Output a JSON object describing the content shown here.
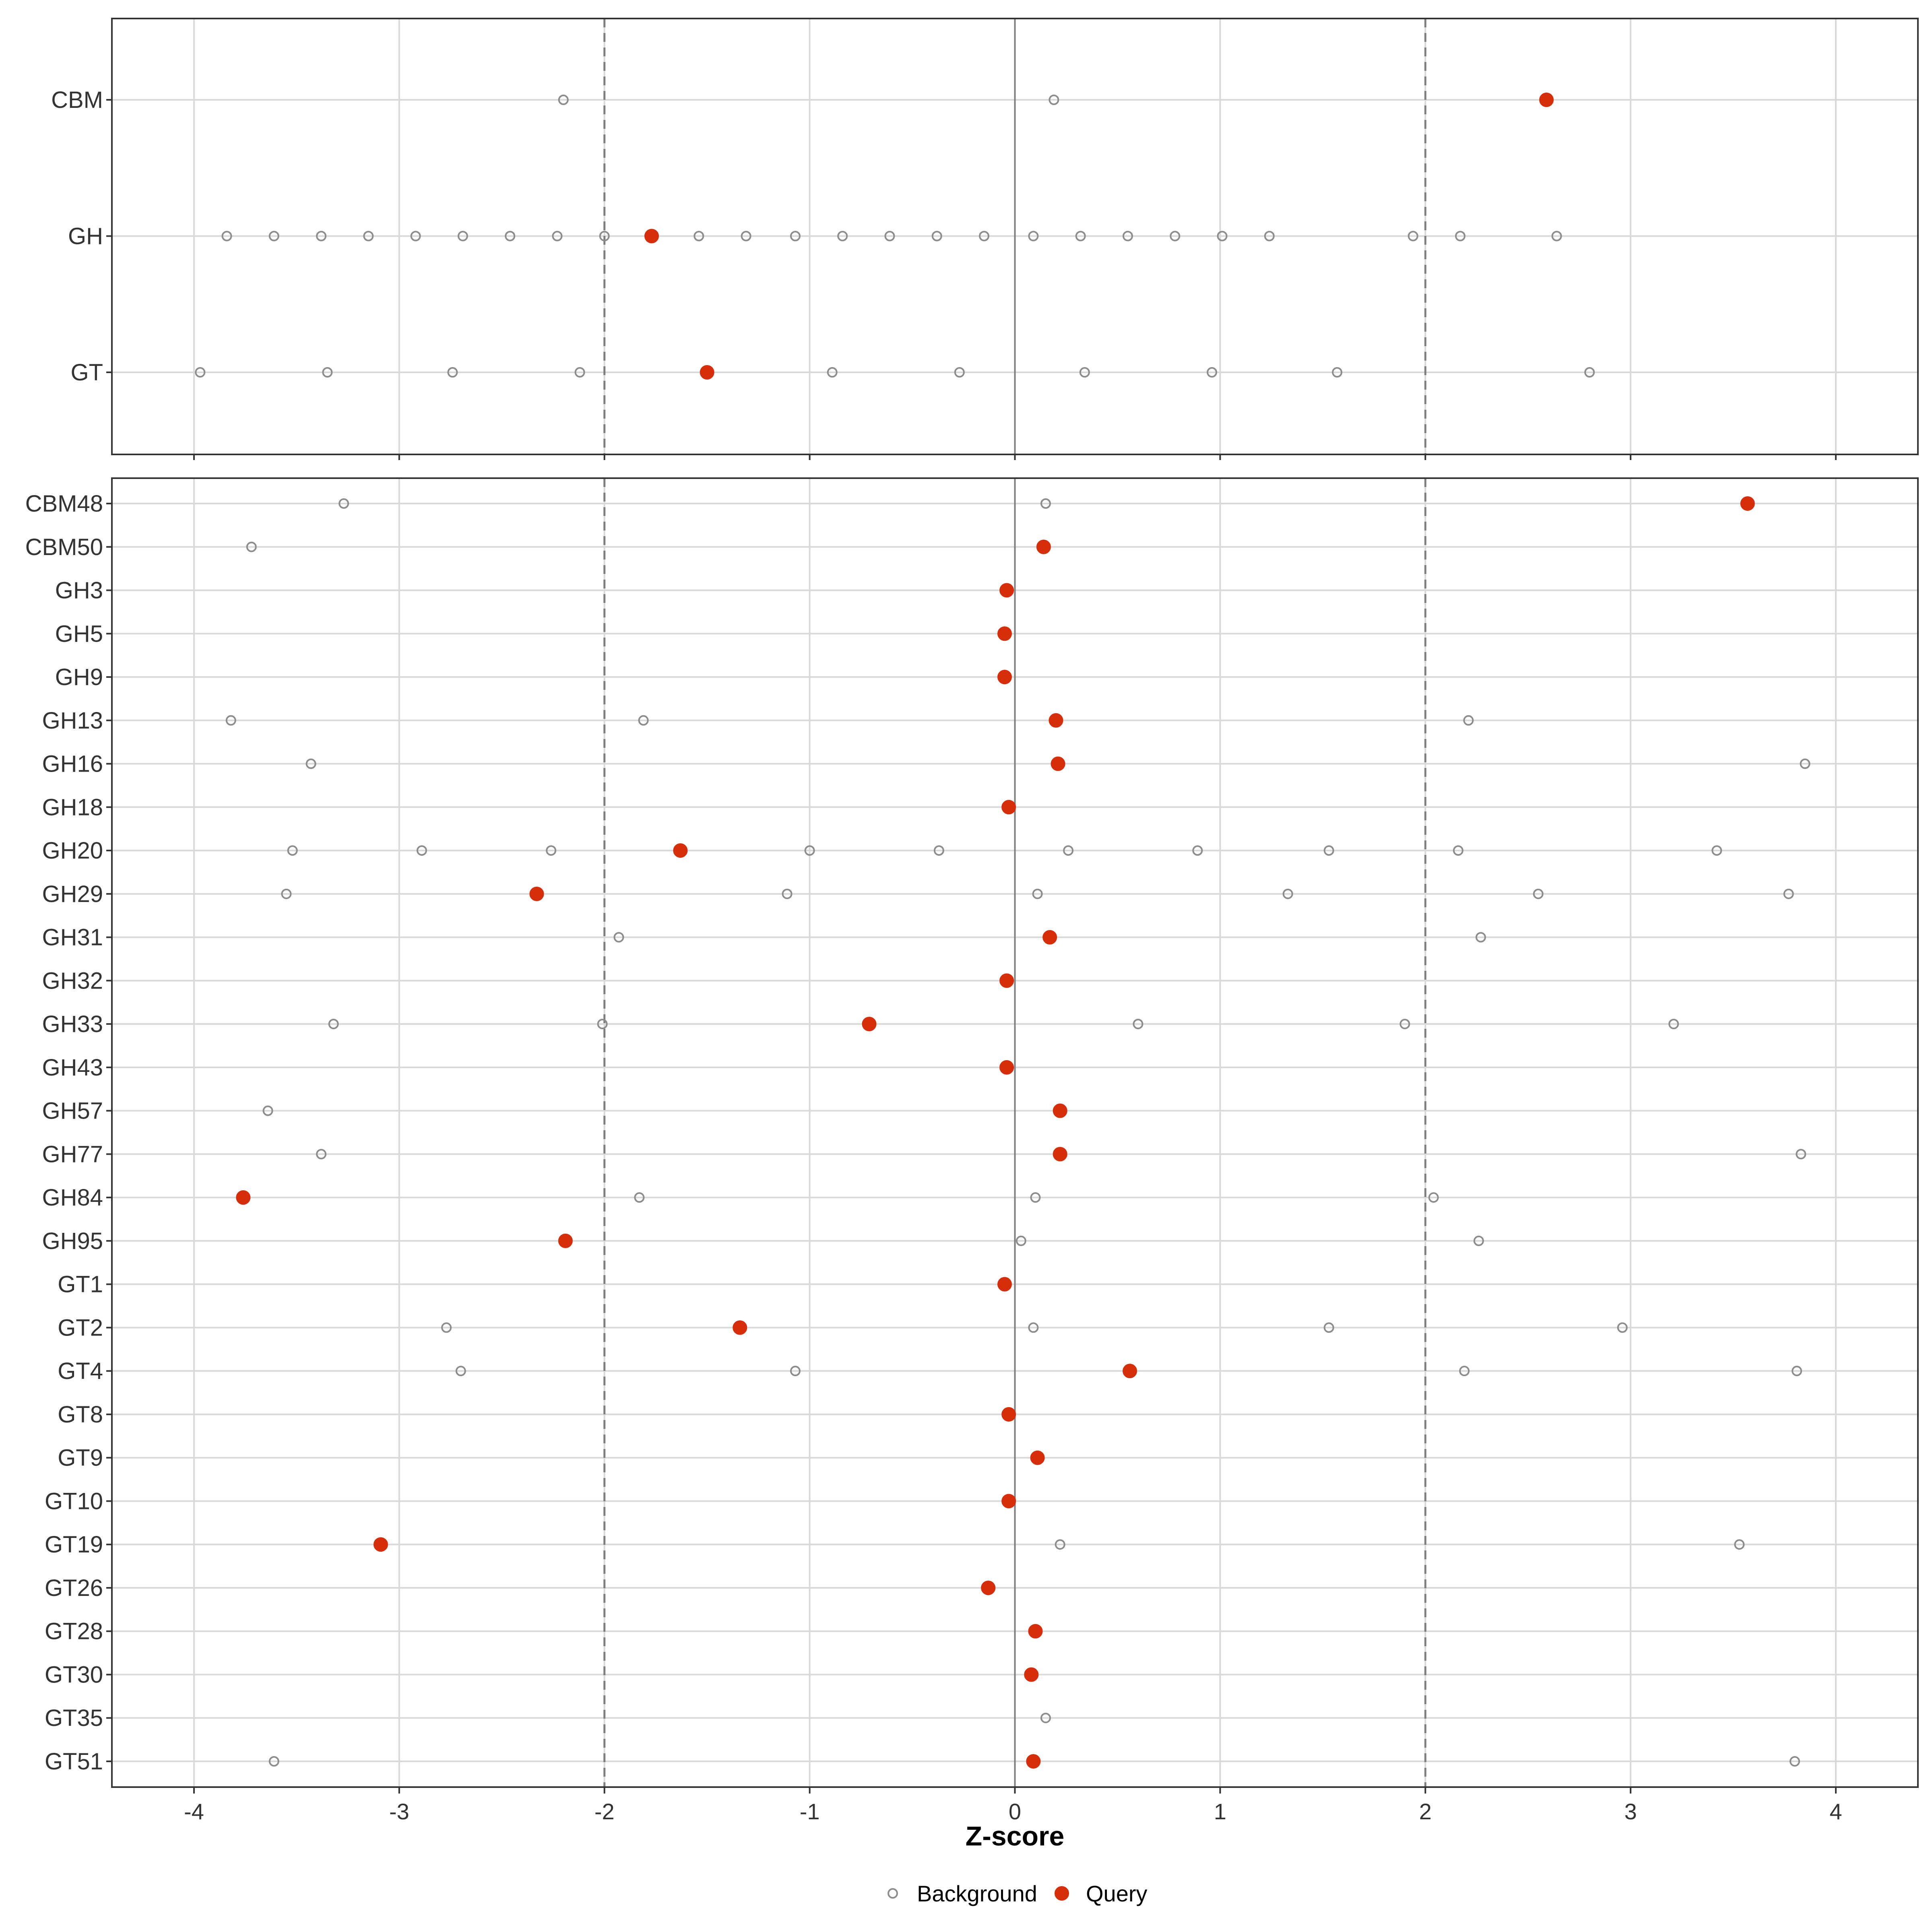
{
  "chart_data": {
    "type": "scatter",
    "xlabel": "Z-score",
    "xlim": [
      -4.4,
      4.4
    ],
    "x_ticks": [
      -4,
      -3,
      -2,
      -1,
      0,
      1,
      2,
      3,
      4
    ],
    "x_tick_labels": [
      "-4",
      "-3",
      "-2",
      "-1",
      "0",
      "1",
      "2",
      "3",
      "4"
    ],
    "reference_lines": {
      "solid": 0,
      "dashed": [
        -2,
        2
      ]
    },
    "grid": true,
    "legend": {
      "position": "bottom",
      "entries": [
        {
          "label": "Background",
          "style": "open-circle",
          "color": "#8c8c8c"
        },
        {
          "label": "Query",
          "style": "filled-circle",
          "color": "#d62d0a"
        }
      ]
    },
    "panels": [
      {
        "name": "top",
        "categories": [
          "CBM",
          "GH",
          "GT"
        ],
        "points": [
          {
            "cat": "CBM",
            "background": [
              -2.2,
              0.19
            ],
            "query": 2.59
          },
          {
            "cat": "GH",
            "background": [
              -3.84,
              -3.61,
              -3.38,
              -3.15,
              -2.92,
              -2.69,
              -2.46,
              -2.23,
              -2.0,
              -1.54,
              -1.31,
              -1.07,
              -0.84,
              -0.61,
              -0.38,
              -0.15,
              0.09,
              0.32,
              0.55,
              0.78,
              1.01,
              1.24,
              1.94,
              2.17,
              2.64
            ],
            "query": -1.77
          },
          {
            "cat": "GT",
            "background": [
              -3.97,
              -3.35,
              -2.74,
              -2.12,
              -0.89,
              -0.27,
              0.34,
              0.96,
              1.57,
              2.8
            ],
            "query": -1.5
          }
        ]
      },
      {
        "name": "bottom",
        "categories": [
          "CBM48",
          "CBM50",
          "GH3",
          "GH5",
          "GH9",
          "GH13",
          "GH16",
          "GH18",
          "GH20",
          "GH29",
          "GH31",
          "GH32",
          "GH33",
          "GH43",
          "GH57",
          "GH77",
          "GH84",
          "GH95",
          "GT1",
          "GT2",
          "GT4",
          "GT8",
          "GT9",
          "GT10",
          "GT19",
          "GT26",
          "GT28",
          "GT30",
          "GT35",
          "GT51"
        ],
        "points": [
          {
            "cat": "CBM48",
            "background": [
              -3.27,
              0.15
            ],
            "query": 3.57
          },
          {
            "cat": "CBM50",
            "background": [
              -3.72
            ],
            "query": 0.14
          },
          {
            "cat": "GH3",
            "background": [],
            "query": -0.04
          },
          {
            "cat": "GH5",
            "background": [],
            "query": -0.05
          },
          {
            "cat": "GH9",
            "background": [],
            "query": -0.05
          },
          {
            "cat": "GH13",
            "background": [
              -3.82,
              -1.81,
              2.21
            ],
            "query": 0.2
          },
          {
            "cat": "GH16",
            "background": [
              -3.43,
              3.85
            ],
            "query": 0.21
          },
          {
            "cat": "GH18",
            "background": [],
            "query": -0.03
          },
          {
            "cat": "GH20",
            "background": [
              -3.52,
              -2.89,
              -2.26,
              -1.0,
              -0.37,
              0.26,
              0.89,
              1.53,
              2.16,
              3.42
            ],
            "query": -1.63
          },
          {
            "cat": "GH29",
            "background": [
              -3.55,
              -1.11,
              0.11,
              1.33,
              2.55,
              3.77
            ],
            "query": -2.33
          },
          {
            "cat": "GH31",
            "background": [
              -1.93,
              2.27
            ],
            "query": 0.17
          },
          {
            "cat": "GH32",
            "background": [],
            "query": -0.04
          },
          {
            "cat": "GH33",
            "background": [
              -3.32,
              -2.01,
              0.6,
              1.9,
              3.21
            ],
            "query": -0.71
          },
          {
            "cat": "GH43",
            "background": [],
            "query": -0.04
          },
          {
            "cat": "GH57",
            "background": [
              -3.64
            ],
            "query": 0.22
          },
          {
            "cat": "GH77",
            "background": [
              -3.38,
              3.83
            ],
            "query": 0.22
          },
          {
            "cat": "GH84",
            "background": [
              -1.83,
              0.1,
              2.04
            ],
            "query": -3.76
          },
          {
            "cat": "GH95",
            "background": [
              0.03,
              2.26
            ],
            "query": -2.19
          },
          {
            "cat": "GT1",
            "background": [],
            "query": -0.05
          },
          {
            "cat": "GT2",
            "background": [
              -2.77,
              0.09,
              1.53,
              2.96
            ],
            "query": -1.34
          },
          {
            "cat": "GT4",
            "background": [
              -2.7,
              -1.07,
              2.19,
              3.81
            ],
            "query": 0.56
          },
          {
            "cat": "GT8",
            "background": [],
            "query": -0.03
          },
          {
            "cat": "GT9",
            "background": [],
            "query": 0.11
          },
          {
            "cat": "GT10",
            "background": [],
            "query": -0.03
          },
          {
            "cat": "GT19",
            "background": [
              0.22,
              3.53
            ],
            "query": -3.09
          },
          {
            "cat": "GT26",
            "background": [],
            "query": -0.13
          },
          {
            "cat": "GT28",
            "background": [],
            "query": 0.1
          },
          {
            "cat": "GT30",
            "background": [],
            "query": 0.08
          },
          {
            "cat": "GT35",
            "background": [
              0.15
            ],
            "query": null
          },
          {
            "cat": "GT51",
            "background": [
              -3.61,
              3.8
            ],
            "query": 0.09
          }
        ]
      }
    ]
  }
}
